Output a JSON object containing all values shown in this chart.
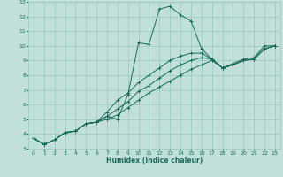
{
  "title": "",
  "xlabel": "Humidex (Indice chaleur)",
  "ylabel": "",
  "background_color": "#c2e0da",
  "grid_color": "#96c8c0",
  "line_color": "#1a6b5a",
  "xlim": [
    -0.5,
    23.5
  ],
  "ylim": [
    3,
    13
  ],
  "xticks": [
    0,
    1,
    2,
    3,
    4,
    5,
    6,
    7,
    8,
    9,
    10,
    11,
    12,
    13,
    14,
    15,
    16,
    17,
    18,
    19,
    20,
    21,
    22,
    23
  ],
  "yticks": [
    3,
    4,
    5,
    6,
    7,
    8,
    9,
    10,
    11,
    12,
    13
  ],
  "lines": [
    {
      "x": [
        0,
        1,
        2,
        3,
        4,
        5,
        6,
        7,
        8,
        9,
        10,
        11,
        12,
        13,
        14,
        15,
        16,
        17,
        18,
        19,
        20,
        21,
        22,
        23
      ],
      "y": [
        3.7,
        3.3,
        3.6,
        4.1,
        4.2,
        4.7,
        4.8,
        5.2,
        5.0,
        6.7,
        10.2,
        10.1,
        12.5,
        12.7,
        12.1,
        11.7,
        9.8,
        9.1,
        8.5,
        8.8,
        9.1,
        9.2,
        10.0,
        10.0
      ]
    },
    {
      "x": [
        0,
        1,
        2,
        3,
        4,
        5,
        6,
        7,
        8,
        9,
        10,
        11,
        12,
        13,
        14,
        15,
        16,
        17,
        18,
        19,
        20,
        21,
        22,
        23
      ],
      "y": [
        3.7,
        3.3,
        3.6,
        4.1,
        4.2,
        4.7,
        4.8,
        5.5,
        6.3,
        6.8,
        7.5,
        8.0,
        8.5,
        9.0,
        9.3,
        9.5,
        9.5,
        9.1,
        8.5,
        8.7,
        9.0,
        9.1,
        9.8,
        10.0
      ]
    },
    {
      "x": [
        0,
        1,
        2,
        3,
        4,
        5,
        6,
        7,
        8,
        9,
        10,
        11,
        12,
        13,
        14,
        15,
        16,
        17,
        18,
        19,
        20,
        21,
        22,
        23
      ],
      "y": [
        3.7,
        3.3,
        3.6,
        4.1,
        4.2,
        4.7,
        4.8,
        5.2,
        5.7,
        6.2,
        6.9,
        7.3,
        7.8,
        8.3,
        8.7,
        9.0,
        9.2,
        9.1,
        8.5,
        8.7,
        9.0,
        9.1,
        9.8,
        10.0
      ]
    },
    {
      "x": [
        0,
        1,
        2,
        3,
        4,
        5,
        6,
        7,
        8,
        9,
        10,
        11,
        12,
        13,
        14,
        15,
        16,
        17,
        18,
        19,
        20,
        21,
        22,
        23
      ],
      "y": [
        3.7,
        3.3,
        3.6,
        4.1,
        4.2,
        4.7,
        4.8,
        5.0,
        5.3,
        5.8,
        6.3,
        6.8,
        7.2,
        7.6,
        8.0,
        8.4,
        8.7,
        9.0,
        8.5,
        8.7,
        9.0,
        9.1,
        9.8,
        10.0
      ]
    }
  ]
}
